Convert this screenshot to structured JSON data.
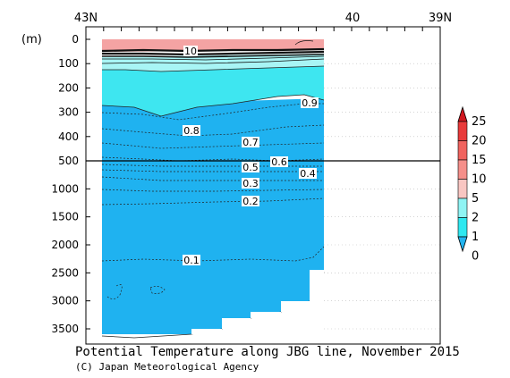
{
  "chart_data": {
    "type": "contour",
    "title": "Potential Temperature along JBG line, November 2015",
    "credit": "(C) Japan Meteorological Agency",
    "y_unit": "(m)",
    "x_ticks": [
      "43N",
      "40",
      "39N"
    ],
    "y_ticks_upper": [
      "0",
      "100",
      "200",
      "300",
      "400",
      "500"
    ],
    "y_ticks_lower": [
      "1000",
      "1500",
      "2000",
      "2500",
      "3000",
      "3500"
    ],
    "y_axis_break": 500,
    "contour_labels": [
      "10",
      "0.9",
      "0.8",
      "0.7",
      "0.6",
      "0.5",
      "0.4",
      "0.3",
      "0.2",
      "0.1"
    ],
    "colorbar": {
      "labels": [
        "25",
        "20",
        "15",
        "10",
        "5",
        "2",
        "1",
        "0"
      ],
      "colors": [
        "#d0171f",
        "#e83a3a",
        "#f0635e",
        "#f58f8a",
        "#f9c6c2",
        "#8ff4f4",
        "#2ee8f0",
        "#22b4f0"
      ]
    },
    "colors": {
      "cyan": "#3ee6f0",
      "light_cyan": "#a8f5f5",
      "blue": "#1fb2f0",
      "pink": "#f4a3a3",
      "salmon": "#ef8080"
    }
  }
}
